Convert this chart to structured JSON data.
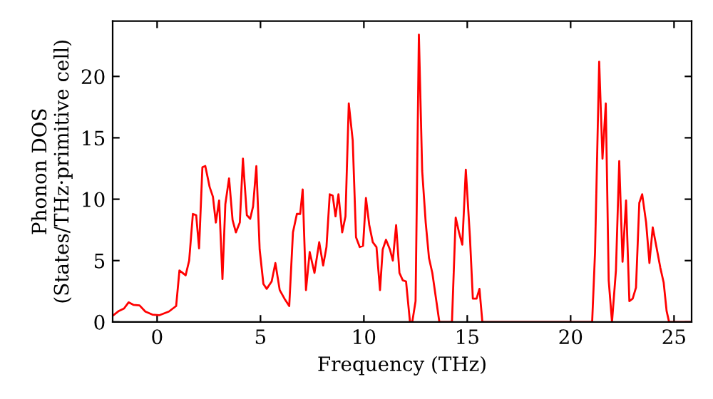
{
  "chart_data": {
    "type": "line",
    "xlabel": "Frequency (THz)",
    "ylabel": "Phonon DOS\n(States/THz·primitive cell)",
    "xlim": [
      -2.15,
      25.85
    ],
    "ylim": [
      0,
      24.5
    ],
    "xticks": [
      0,
      5,
      10,
      15,
      20,
      25
    ],
    "yticks": [
      0,
      5,
      10,
      15,
      20
    ],
    "grid": false,
    "marker": "none",
    "line_style": "solid",
    "series": [
      {
        "color": "#ff0000",
        "x": [
          -2.15,
          -1.85,
          -1.6,
          -1.38,
          -1.15,
          -0.85,
          -0.57,
          -0.23,
          0.1,
          0.57,
          0.92,
          1.08,
          1.38,
          1.55,
          1.73,
          1.89,
          2.03,
          2.19,
          2.33,
          2.54,
          2.7,
          2.84,
          3.0,
          3.16,
          3.3,
          3.48,
          3.65,
          3.81,
          4.0,
          4.15,
          4.34,
          4.5,
          4.64,
          4.8,
          4.96,
          5.14,
          5.3,
          5.54,
          5.72,
          5.93,
          6.16,
          6.39,
          6.57,
          6.76,
          6.92,
          7.04,
          7.2,
          7.38,
          7.61,
          7.84,
          8.03,
          8.19,
          8.35,
          8.49,
          8.63,
          8.77,
          8.95,
          9.11,
          9.27,
          9.46,
          9.62,
          9.8,
          9.96,
          10.1,
          10.26,
          10.43,
          10.61,
          10.78,
          10.91,
          11.07,
          11.26,
          11.4,
          11.56,
          11.72,
          11.88,
          12.04,
          12.23,
          12.34,
          12.5,
          12.66,
          12.82,
          12.99,
          13.15,
          13.31,
          13.65,
          14.26,
          14.44,
          14.6,
          14.76,
          14.93,
          15.13,
          15.27,
          15.45,
          15.59,
          15.73,
          21.04,
          21.18,
          21.38,
          21.54,
          21.7,
          21.84,
          22.0,
          22.19,
          22.35,
          22.51,
          22.68,
          22.84,
          23.0,
          23.16,
          23.32,
          23.46,
          23.65,
          23.81,
          23.97,
          24.15,
          24.34,
          24.5,
          24.64,
          24.76,
          25.85
        ],
        "values": [
          0.5,
          0.9,
          1.1,
          1.6,
          1.4,
          1.35,
          0.85,
          0.6,
          0.55,
          0.85,
          1.3,
          4.2,
          3.8,
          5.0,
          8.8,
          8.7,
          6.0,
          12.6,
          12.7,
          11.0,
          10.2,
          8.1,
          9.9,
          3.5,
          9.6,
          11.7,
          8.3,
          7.3,
          8.1,
          13.3,
          8.7,
          8.4,
          9.4,
          12.7,
          5.9,
          3.1,
          2.7,
          3.3,
          4.8,
          2.6,
          1.9,
          1.3,
          7.3,
          8.8,
          8.8,
          10.8,
          2.6,
          5.7,
          4.0,
          6.5,
          4.6,
          6.1,
          10.4,
          10.3,
          8.6,
          10.4,
          7.3,
          8.6,
          17.8,
          14.8,
          6.9,
          6.1,
          6.2,
          10.1,
          7.9,
          6.5,
          6.1,
          2.6,
          5.9,
          6.7,
          5.9,
          5.0,
          7.9,
          4.0,
          3.4,
          3.3,
          0,
          0,
          1.7,
          23.4,
          12.3,
          8.1,
          5.2,
          4.0,
          0,
          0,
          8.5,
          7.3,
          6.3,
          12.4,
          6.9,
          1.9,
          1.9,
          2.7,
          0,
          0,
          5.7,
          21.2,
          13.3,
          17.8,
          3.4,
          0,
          4.2,
          13.1,
          4.9,
          9.9,
          1.7,
          1.9,
          2.8,
          9.7,
          10.4,
          8.1,
          4.8,
          7.7,
          6.1,
          4.4,
          3.2,
          0.9,
          0,
          0
        ]
      }
    ]
  }
}
